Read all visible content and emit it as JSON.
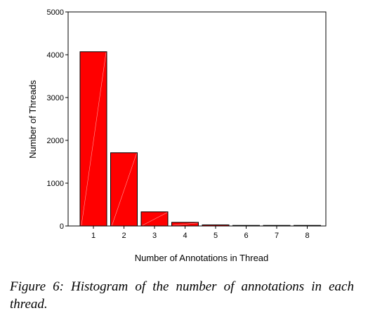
{
  "caption": "Figure 6: Histogram of the number of annotations in each thread.",
  "chart_data": {
    "type": "bar",
    "title": "",
    "xlabel": "Number of Annotations in Thread",
    "ylabel": "Number of Threads",
    "categories": [
      "1",
      "2",
      "3",
      "4",
      "5",
      "6",
      "7",
      "8"
    ],
    "values": [
      4070,
      1710,
      330,
      85,
      25,
      5,
      3,
      2
    ],
    "ylim": [
      0,
      5000
    ],
    "yticks": [
      0,
      1000,
      2000,
      3000,
      4000,
      5000
    ],
    "ytick_labels": [
      "0",
      "1000",
      "2000",
      "3000",
      "4000",
      "5000"
    ],
    "grid": false,
    "bar_color": "#ff0000",
    "edge_color": "#000000"
  }
}
